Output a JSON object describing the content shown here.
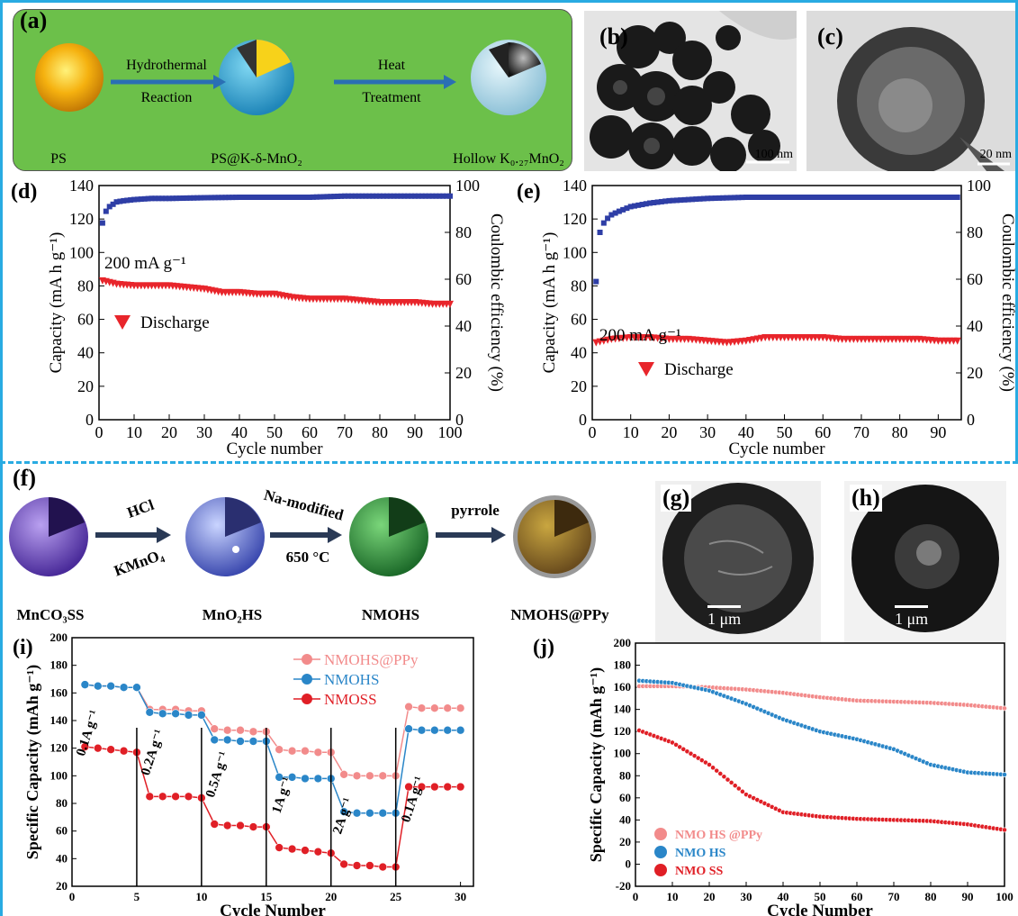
{
  "panel_a": {
    "label": "(a)",
    "arrow1_top": "Hydrothermal",
    "arrow1_bottom": "Reaction",
    "arrow2_top": "Heat",
    "arrow2_bottom": "Treatment",
    "item1": "PS",
    "item2": "PS@K-δ-MnO₂",
    "item3": "Hollow K₀.₂₇MnO₂",
    "bg_color": "#6cc04a"
  },
  "panel_b": {
    "label": "(b)",
    "scale": "100 nm"
  },
  "panel_c": {
    "label": "(c)",
    "scale": "20 nm"
  },
  "panel_f": {
    "label": "(f)",
    "arrow1_top": "HCl",
    "arrow1_bottom": "KMnO₄",
    "arrow2_top": "Na-modified",
    "arrow2_bottom": "650 °C",
    "arrow3_top": "pyrrole",
    "item1": "MnCO₃SS",
    "item2": "MnO₂HS",
    "item3": "NMOHS",
    "item4": "NMOHS@PPy"
  },
  "panel_g": {
    "label": "(g)",
    "scale": "1 μm"
  },
  "panel_h": {
    "label": "(h)",
    "scale": "1 μm"
  },
  "chart_data": [
    {
      "id": "d",
      "type": "scatter",
      "label": "(d)",
      "xlabel": "Cycle number",
      "ylabel": "Capacity (mA h g⁻¹)",
      "y2label": "Coulombic efficiency (%)",
      "xlim": [
        0,
        100
      ],
      "ylim": [
        0,
        140
      ],
      "y2lim": [
        0,
        100
      ],
      "xticks": [
        0,
        10,
        20,
        30,
        40,
        50,
        60,
        70,
        80,
        90,
        100
      ],
      "yticks": [
        0,
        20,
        40,
        60,
        80,
        100,
        120,
        140
      ],
      "y2ticks": [
        0,
        20,
        40,
        60,
        80,
        100
      ],
      "annotation": "200 mA g⁻¹",
      "legend": "Discharge",
      "series": [
        {
          "name": "Discharge",
          "axis": "left",
          "color": "#e8252b",
          "marker": "triangle-down",
          "x": [
            1,
            5,
            10,
            15,
            20,
            25,
            30,
            35,
            40,
            45,
            50,
            55,
            60,
            65,
            70,
            75,
            80,
            85,
            90,
            95,
            100
          ],
          "values": [
            83,
            81,
            80,
            80,
            80,
            79,
            78,
            76,
            76,
            75,
            75,
            73,
            72,
            72,
            72,
            71,
            70,
            70,
            70,
            69,
            69
          ]
        },
        {
          "name": "Coulombic efficiency",
          "axis": "right",
          "color": "#2e3ea6",
          "marker": "square",
          "x": [
            1,
            2,
            3,
            4,
            5,
            7,
            10,
            15,
            20,
            30,
            40,
            50,
            60,
            70,
            80,
            90,
            100
          ],
          "values": [
            84,
            89,
            91,
            92,
            93,
            93.5,
            94,
            94.5,
            94.5,
            94.8,
            95,
            95,
            95,
            95.5,
            95.5,
            95.5,
            95.5
          ]
        }
      ]
    },
    {
      "id": "e",
      "type": "scatter",
      "label": "(e)",
      "xlabel": "Cycle number",
      "ylabel": "Capacity (mA h g⁻¹)",
      "y2label": "Coulombic efficiency (%)",
      "xlim": [
        0,
        96
      ],
      "ylim": [
        0,
        140
      ],
      "y2lim": [
        0,
        100
      ],
      "xticks": [
        0,
        10,
        20,
        30,
        40,
        50,
        60,
        70,
        80,
        90
      ],
      "yticks": [
        0,
        20,
        40,
        60,
        80,
        100,
        120,
        140
      ],
      "y2ticks": [
        0,
        20,
        40,
        60,
        80,
        100
      ],
      "annotation": "200 mA g⁻¹",
      "legend": "Discharge",
      "series": [
        {
          "name": "Discharge",
          "axis": "left",
          "color": "#e8252b",
          "marker": "triangle-down",
          "x": [
            1,
            5,
            10,
            15,
            20,
            25,
            30,
            35,
            40,
            45,
            50,
            55,
            60,
            65,
            70,
            75,
            80,
            85,
            90,
            95
          ],
          "values": [
            46,
            48,
            49,
            49,
            48,
            48,
            47,
            46,
            47,
            49,
            49,
            49,
            49,
            48,
            48,
            48,
            48,
            48,
            47,
            47
          ]
        },
        {
          "name": "Coulombic efficiency",
          "axis": "right",
          "color": "#2e3ea6",
          "marker": "square",
          "x": [
            1,
            2,
            3,
            4,
            5,
            7,
            10,
            15,
            20,
            25,
            30,
            40,
            50,
            60,
            70,
            80,
            90,
            95
          ],
          "values": [
            59,
            80,
            84,
            86,
            87.5,
            89,
            91,
            92.5,
            93.5,
            94,
            94.5,
            95,
            95,
            95,
            95,
            95,
            95,
            95
          ]
        }
      ]
    },
    {
      "id": "i",
      "type": "line",
      "label": "(i)",
      "xlabel": "Cycle Number",
      "ylabel": "Specific Capacity (mAh g⁻¹)",
      "xlim": [
        0,
        31
      ],
      "ylim": [
        20,
        200
      ],
      "xticks": [
        0,
        5,
        10,
        15,
        20,
        25,
        30
      ],
      "yticks": [
        20,
        40,
        60,
        80,
        100,
        120,
        140,
        160,
        180,
        200
      ],
      "rate_labels": [
        "0.1A g⁻¹",
        "0.2A g⁻¹",
        "0.5A g⁻¹",
        "1A g⁻¹",
        "2A g⁻¹",
        "0.1A g⁻¹"
      ],
      "series": [
        {
          "name": "NMOHS@PPy",
          "color": "#f28b8b",
          "x": [
            1,
            2,
            3,
            4,
            5,
            6,
            7,
            8,
            9,
            10,
            11,
            12,
            13,
            14,
            15,
            16,
            17,
            18,
            19,
            20,
            21,
            22,
            23,
            24,
            25,
            26,
            27,
            28,
            29,
            30
          ],
          "values": [
            166,
            165,
            165,
            164,
            164,
            148,
            148,
            148,
            147,
            147,
            134,
            133,
            133,
            132,
            132,
            119,
            118,
            118,
            117,
            117,
            101,
            100,
            100,
            100,
            100,
            150,
            149,
            149,
            149,
            149
          ]
        },
        {
          "name": "NMOHS",
          "color": "#2a86c8",
          "x": [
            1,
            2,
            3,
            4,
            5,
            6,
            7,
            8,
            9,
            10,
            11,
            12,
            13,
            14,
            15,
            16,
            17,
            18,
            19,
            20,
            21,
            22,
            23,
            24,
            25,
            26,
            27,
            28,
            29,
            30
          ],
          "values": [
            166,
            165,
            165,
            164,
            164,
            146,
            145,
            145,
            144,
            144,
            126,
            126,
            125,
            125,
            125,
            99,
            99,
            98,
            98,
            98,
            74,
            73,
            73,
            73,
            73,
            134,
            133,
            133,
            133,
            133
          ]
        },
        {
          "name": "NMOSS",
          "color": "#e01f26",
          "x": [
            1,
            2,
            3,
            4,
            5,
            6,
            7,
            8,
            9,
            10,
            11,
            12,
            13,
            14,
            15,
            16,
            17,
            18,
            19,
            20,
            21,
            22,
            23,
            24,
            25,
            26,
            27,
            28,
            29,
            30
          ],
          "values": [
            121,
            120,
            119,
            118,
            117,
            85,
            85,
            85,
            85,
            84,
            65,
            64,
            64,
            63,
            63,
            48,
            47,
            46,
            45,
            44,
            36,
            35,
            35,
            34,
            34,
            92,
            92,
            92,
            92,
            92
          ]
        }
      ]
    },
    {
      "id": "j",
      "type": "line",
      "label": "(j)",
      "xlabel": "Cycle Number",
      "ylabel": "Specific Capacity (mAh g⁻¹)",
      "xlim": [
        0,
        100
      ],
      "ylim": [
        -20,
        200
      ],
      "xticks": [
        0,
        10,
        20,
        30,
        40,
        50,
        60,
        70,
        80,
        90,
        100
      ],
      "yticks": [
        -20,
        0,
        20,
        40,
        60,
        80,
        100,
        120,
        140,
        160,
        180,
        200
      ],
      "series": [
        {
          "name": "NMO HS @PPy",
          "color": "#f28b8b",
          "x": [
            1,
            10,
            20,
            30,
            40,
            50,
            60,
            70,
            80,
            90,
            100
          ],
          "values": [
            161,
            161,
            160,
            158,
            155,
            151,
            148,
            147,
            146,
            144,
            141
          ]
        },
        {
          "name": "NMO HS",
          "color": "#2a86c8",
          "x": [
            1,
            10,
            20,
            30,
            40,
            50,
            60,
            70,
            80,
            90,
            100
          ],
          "values": [
            166,
            164,
            157,
            145,
            131,
            120,
            113,
            104,
            90,
            83,
            81
          ]
        },
        {
          "name": "NMO SS",
          "color": "#e01f26",
          "x": [
            1,
            10,
            20,
            30,
            40,
            50,
            60,
            70,
            80,
            90,
            100
          ],
          "values": [
            121,
            110,
            90,
            63,
            47,
            43,
            41,
            40,
            39,
            36,
            31
          ]
        }
      ]
    }
  ]
}
